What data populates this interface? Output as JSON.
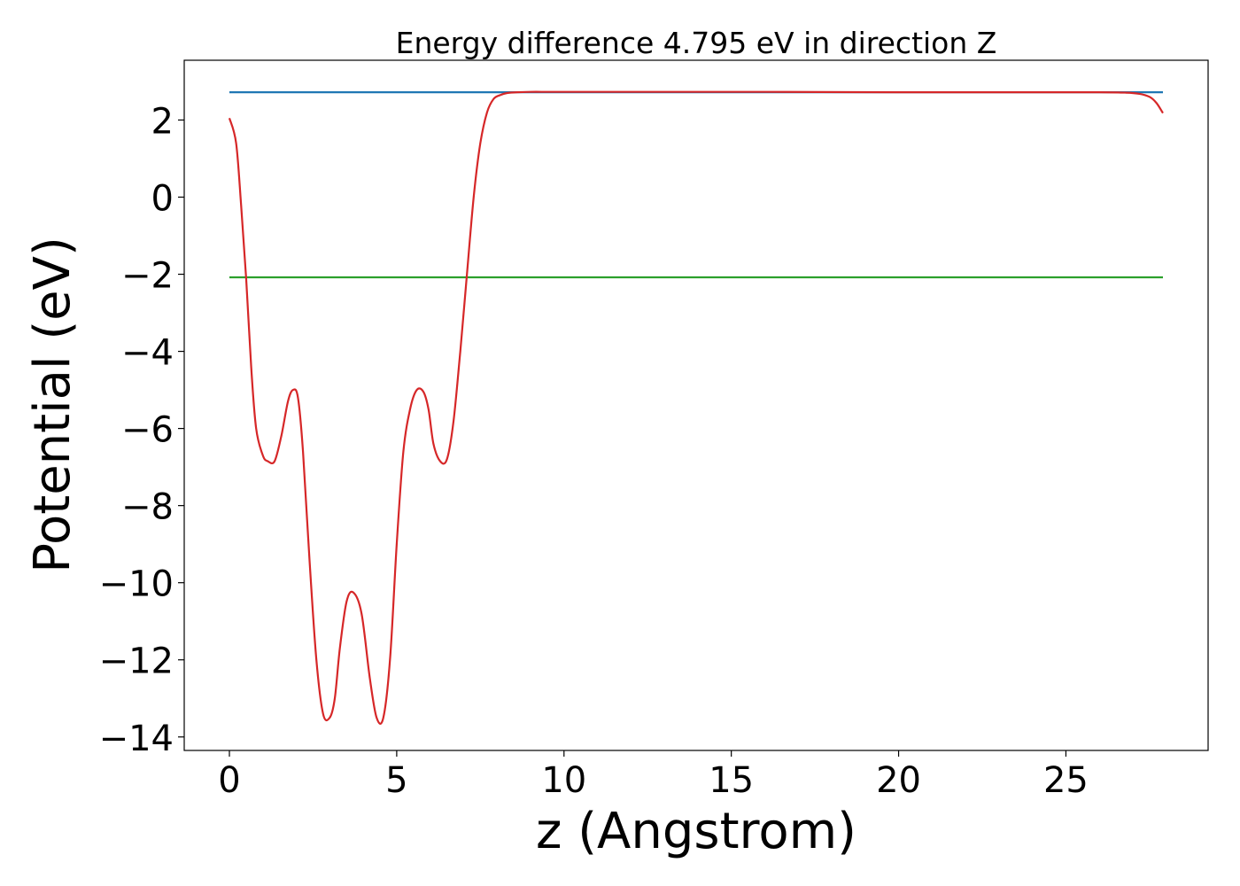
{
  "chart_data": {
    "type": "line",
    "title": "Energy difference 4.795 eV in direction Z",
    "xlabel": "z (Angstrom)",
    "ylabel": "Potential (eV)",
    "xlim": [
      -1.35,
      29.25
    ],
    "ylim": [
      -14.35,
      3.55
    ],
    "xticks": [
      0,
      5,
      10,
      15,
      20,
      25
    ],
    "xtick_labels": [
      "0",
      "5",
      "10",
      "15",
      "20",
      "25"
    ],
    "yticks": [
      2,
      0,
      -2,
      -4,
      -6,
      -8,
      -10,
      -12,
      -14
    ],
    "ytick_labels": [
      "2",
      "0",
      "−2",
      "−4",
      "−6",
      "−8",
      "−10",
      "−12",
      "−14"
    ],
    "grid": false,
    "legend": "none",
    "series": [
      {
        "color": "#1f77b4",
        "x": [
          0,
          27.9
        ],
        "y": [
          2.72,
          2.72
        ]
      },
      {
        "color": "#2ca02c",
        "x": [
          0,
          27.9
        ],
        "y": [
          -2.08,
          -2.08
        ]
      },
      {
        "color": "#d62728",
        "x": [
          0,
          0.2,
          0.35,
          0.5,
          0.65,
          0.8,
          1.0,
          1.15,
          1.35,
          1.55,
          1.75,
          1.9,
          2.05,
          2.2,
          2.4,
          2.6,
          2.8,
          3.0,
          3.15,
          3.3,
          3.5,
          3.7,
          3.95,
          4.2,
          4.4,
          4.6,
          4.8,
          5.0,
          5.2,
          5.4,
          5.6,
          5.8,
          5.95,
          6.1,
          6.3,
          6.5,
          6.7,
          6.9,
          7.1,
          7.3,
          7.5,
          7.7,
          7.9,
          8.1,
          8.3,
          8.6,
          9.0,
          9.5,
          10.0,
          11.0,
          13.0,
          16.0,
          20.0,
          24.0,
          26.0,
          26.8,
          27.2,
          27.5,
          27.7,
          27.9
        ],
        "y": [
          2.05,
          1.4,
          -0.2,
          -2.1,
          -4.4,
          -6.0,
          -6.7,
          -6.85,
          -6.85,
          -6.2,
          -5.3,
          -5.0,
          -5.2,
          -6.6,
          -9.5,
          -12.0,
          -13.4,
          -13.5,
          -13.0,
          -11.7,
          -10.5,
          -10.25,
          -10.8,
          -12.5,
          -13.5,
          -13.5,
          -12.0,
          -9.0,
          -6.6,
          -5.5,
          -5.0,
          -5.05,
          -5.5,
          -6.4,
          -6.85,
          -6.8,
          -5.8,
          -4.0,
          -2.0,
          0.0,
          1.4,
          2.2,
          2.55,
          2.65,
          2.7,
          2.72,
          2.73,
          2.73,
          2.73,
          2.73,
          2.73,
          2.73,
          2.72,
          2.72,
          2.72,
          2.71,
          2.68,
          2.6,
          2.45,
          2.18
        ]
      }
    ]
  }
}
